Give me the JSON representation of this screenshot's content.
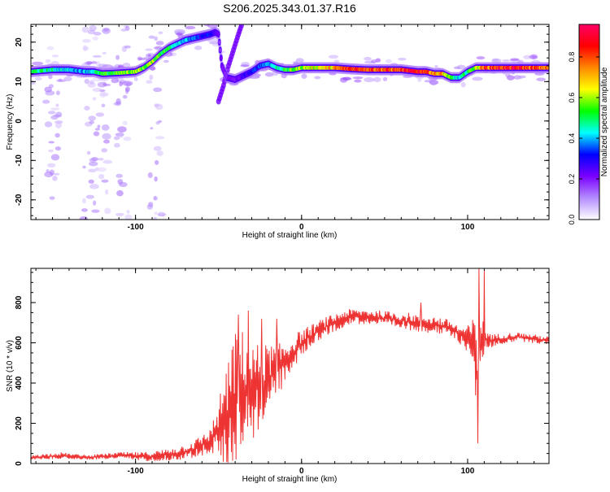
{
  "title": "S206.2025.343.01.37.R16",
  "chart_data": [
    {
      "type": "heatmap",
      "xlabel": "Height of straight line (km)",
      "ylabel": "Frequency (Hz)",
      "xlim": [
        -163,
        149
      ],
      "ylim": [
        -25,
        24.5
      ],
      "x_ticks": [
        -100,
        0,
        100
      ],
      "y_ticks": [
        -20,
        -10,
        0,
        10,
        20
      ],
      "grid": false,
      "colorbar": {
        "label": "Normalized spectral amplitude",
        "range": [
          0,
          0.96
        ],
        "ticks": [
          0.0,
          0.2,
          0.4,
          0.6,
          0.8
        ],
        "colors": [
          "#ffffff",
          "#b48cff",
          "#7a00ff",
          "#0000ff",
          "#00ffff",
          "#00ff00",
          "#ffff00",
          "#ff8800",
          "#ff0000",
          "#ff0066"
        ]
      },
      "ridge": {
        "x": [
          -163,
          -150,
          -140,
          -130,
          -125,
          -120,
          -110,
          -100,
          -95,
          -90,
          -85,
          -80,
          -75,
          -70,
          -65,
          -60,
          -55,
          -52,
          -50,
          -48,
          -45,
          -40,
          -35,
          -30,
          -25,
          -20,
          -15,
          -10,
          -5,
          0,
          10,
          20,
          30,
          40,
          50,
          60,
          70,
          75,
          80,
          85,
          90,
          95,
          100,
          105,
          110,
          120,
          130,
          140,
          149
        ],
        "y": [
          12.5,
          13,
          13,
          12.5,
          12.5,
          12,
          12.2,
          12.5,
          13.5,
          15,
          17,
          18.5,
          19.5,
          20.5,
          21,
          21.5,
          22,
          22.5,
          22,
          14,
          11,
          10.5,
          11.5,
          12.5,
          14,
          14.5,
          13.5,
          13,
          13,
          13.5,
          13.5,
          13.5,
          13.2,
          13,
          13,
          13,
          12.5,
          12.5,
          12,
          12,
          11,
          11,
          12.5,
          13.5,
          13.5,
          13.5,
          13.5,
          13.5,
          13.5
        ],
        "amplitude": [
          0.5,
          0.45,
          0.4,
          0.4,
          0.45,
          0.5,
          0.55,
          0.6,
          0.55,
          0.6,
          0.55,
          0.5,
          0.45,
          0.4,
          0.35,
          0.3,
          0.3,
          0.25,
          0.2,
          0.2,
          0.2,
          0.2,
          0.25,
          0.3,
          0.35,
          0.4,
          0.45,
          0.5,
          0.55,
          0.6,
          0.65,
          0.7,
          0.85,
          0.85,
          0.8,
          0.8,
          0.9,
          0.85,
          0.75,
          0.7,
          0.5,
          0.4,
          0.5,
          0.6,
          0.8,
          0.85,
          0.85,
          0.8,
          0.75
        ]
      },
      "branch": {
        "x": [
          -50,
          -47,
          -44,
          -41,
          -38,
          -36
        ],
        "y": [
          5,
          9,
          14,
          18,
          22,
          24.5
        ]
      },
      "scatter_columns": [
        {
          "x": -150,
          "y_range": [
            -25,
            24
          ]
        },
        {
          "x": -128,
          "y_range": [
            -25,
            24
          ]
        },
        {
          "x": -120,
          "y_range": [
            -25,
            24
          ]
        },
        {
          "x": -108,
          "y_range": [
            -25,
            24
          ]
        },
        {
          "x": -88,
          "y_range": [
            -25,
            24
          ]
        }
      ]
    },
    {
      "type": "line",
      "xlabel": "Height of straight line (km)",
      "ylabel": "SNR (10 * v/v)",
      "xlim": [
        -163,
        149
      ],
      "ylim": [
        0,
        970
      ],
      "x_ticks": [
        -100,
        0,
        100
      ],
      "y_ticks": [
        0,
        200,
        400,
        600,
        800
      ],
      "grid": false,
      "color": "#ee3333",
      "envelope": {
        "x": [
          -163,
          -145,
          -130,
          -110,
          -95,
          -85,
          -75,
          -65,
          -55,
          -50,
          -45,
          -40,
          -35,
          -30,
          -25,
          -20,
          -15,
          -10,
          -5,
          0,
          5,
          10,
          15,
          20,
          25,
          30,
          40,
          50,
          60,
          70,
          80,
          90,
          95,
          100,
          103,
          105,
          106,
          107,
          108,
          110,
          115,
          120,
          130,
          140,
          149
        ],
        "y": [
          30,
          40,
          30,
          40,
          35,
          40,
          50,
          70,
          110,
          170,
          250,
          330,
          380,
          350,
          380,
          430,
          460,
          500,
          550,
          600,
          630,
          660,
          680,
          700,
          720,
          730,
          730,
          720,
          710,
          700,
          690,
          670,
          640,
          620,
          610,
          520,
          300,
          500,
          600,
          620,
          610,
          620,
          630,
          620,
          610
        ]
      },
      "noise": [
        10,
        15,
        10,
        15,
        20,
        25,
        30,
        40,
        60,
        120,
        250,
        300,
        260,
        220,
        200,
        150,
        120,
        100,
        80,
        60,
        50,
        45,
        45,
        40,
        40,
        35,
        35,
        35,
        40,
        40,
        40,
        40,
        40,
        60,
        100,
        200,
        250,
        300,
        150,
        60,
        30,
        25,
        20,
        20,
        20
      ],
      "spikes": [
        {
          "x": -38,
          "y": 740
        },
        {
          "x": -32,
          "y": 760
        },
        {
          "x": -24,
          "y": 720
        },
        {
          "x": -15,
          "y": 720
        },
        {
          "x": 72,
          "y": 800
        },
        {
          "x": 107,
          "y": 970
        },
        {
          "x": 110,
          "y": 960
        },
        {
          "x": 106,
          "y": 100
        }
      ]
    }
  ]
}
